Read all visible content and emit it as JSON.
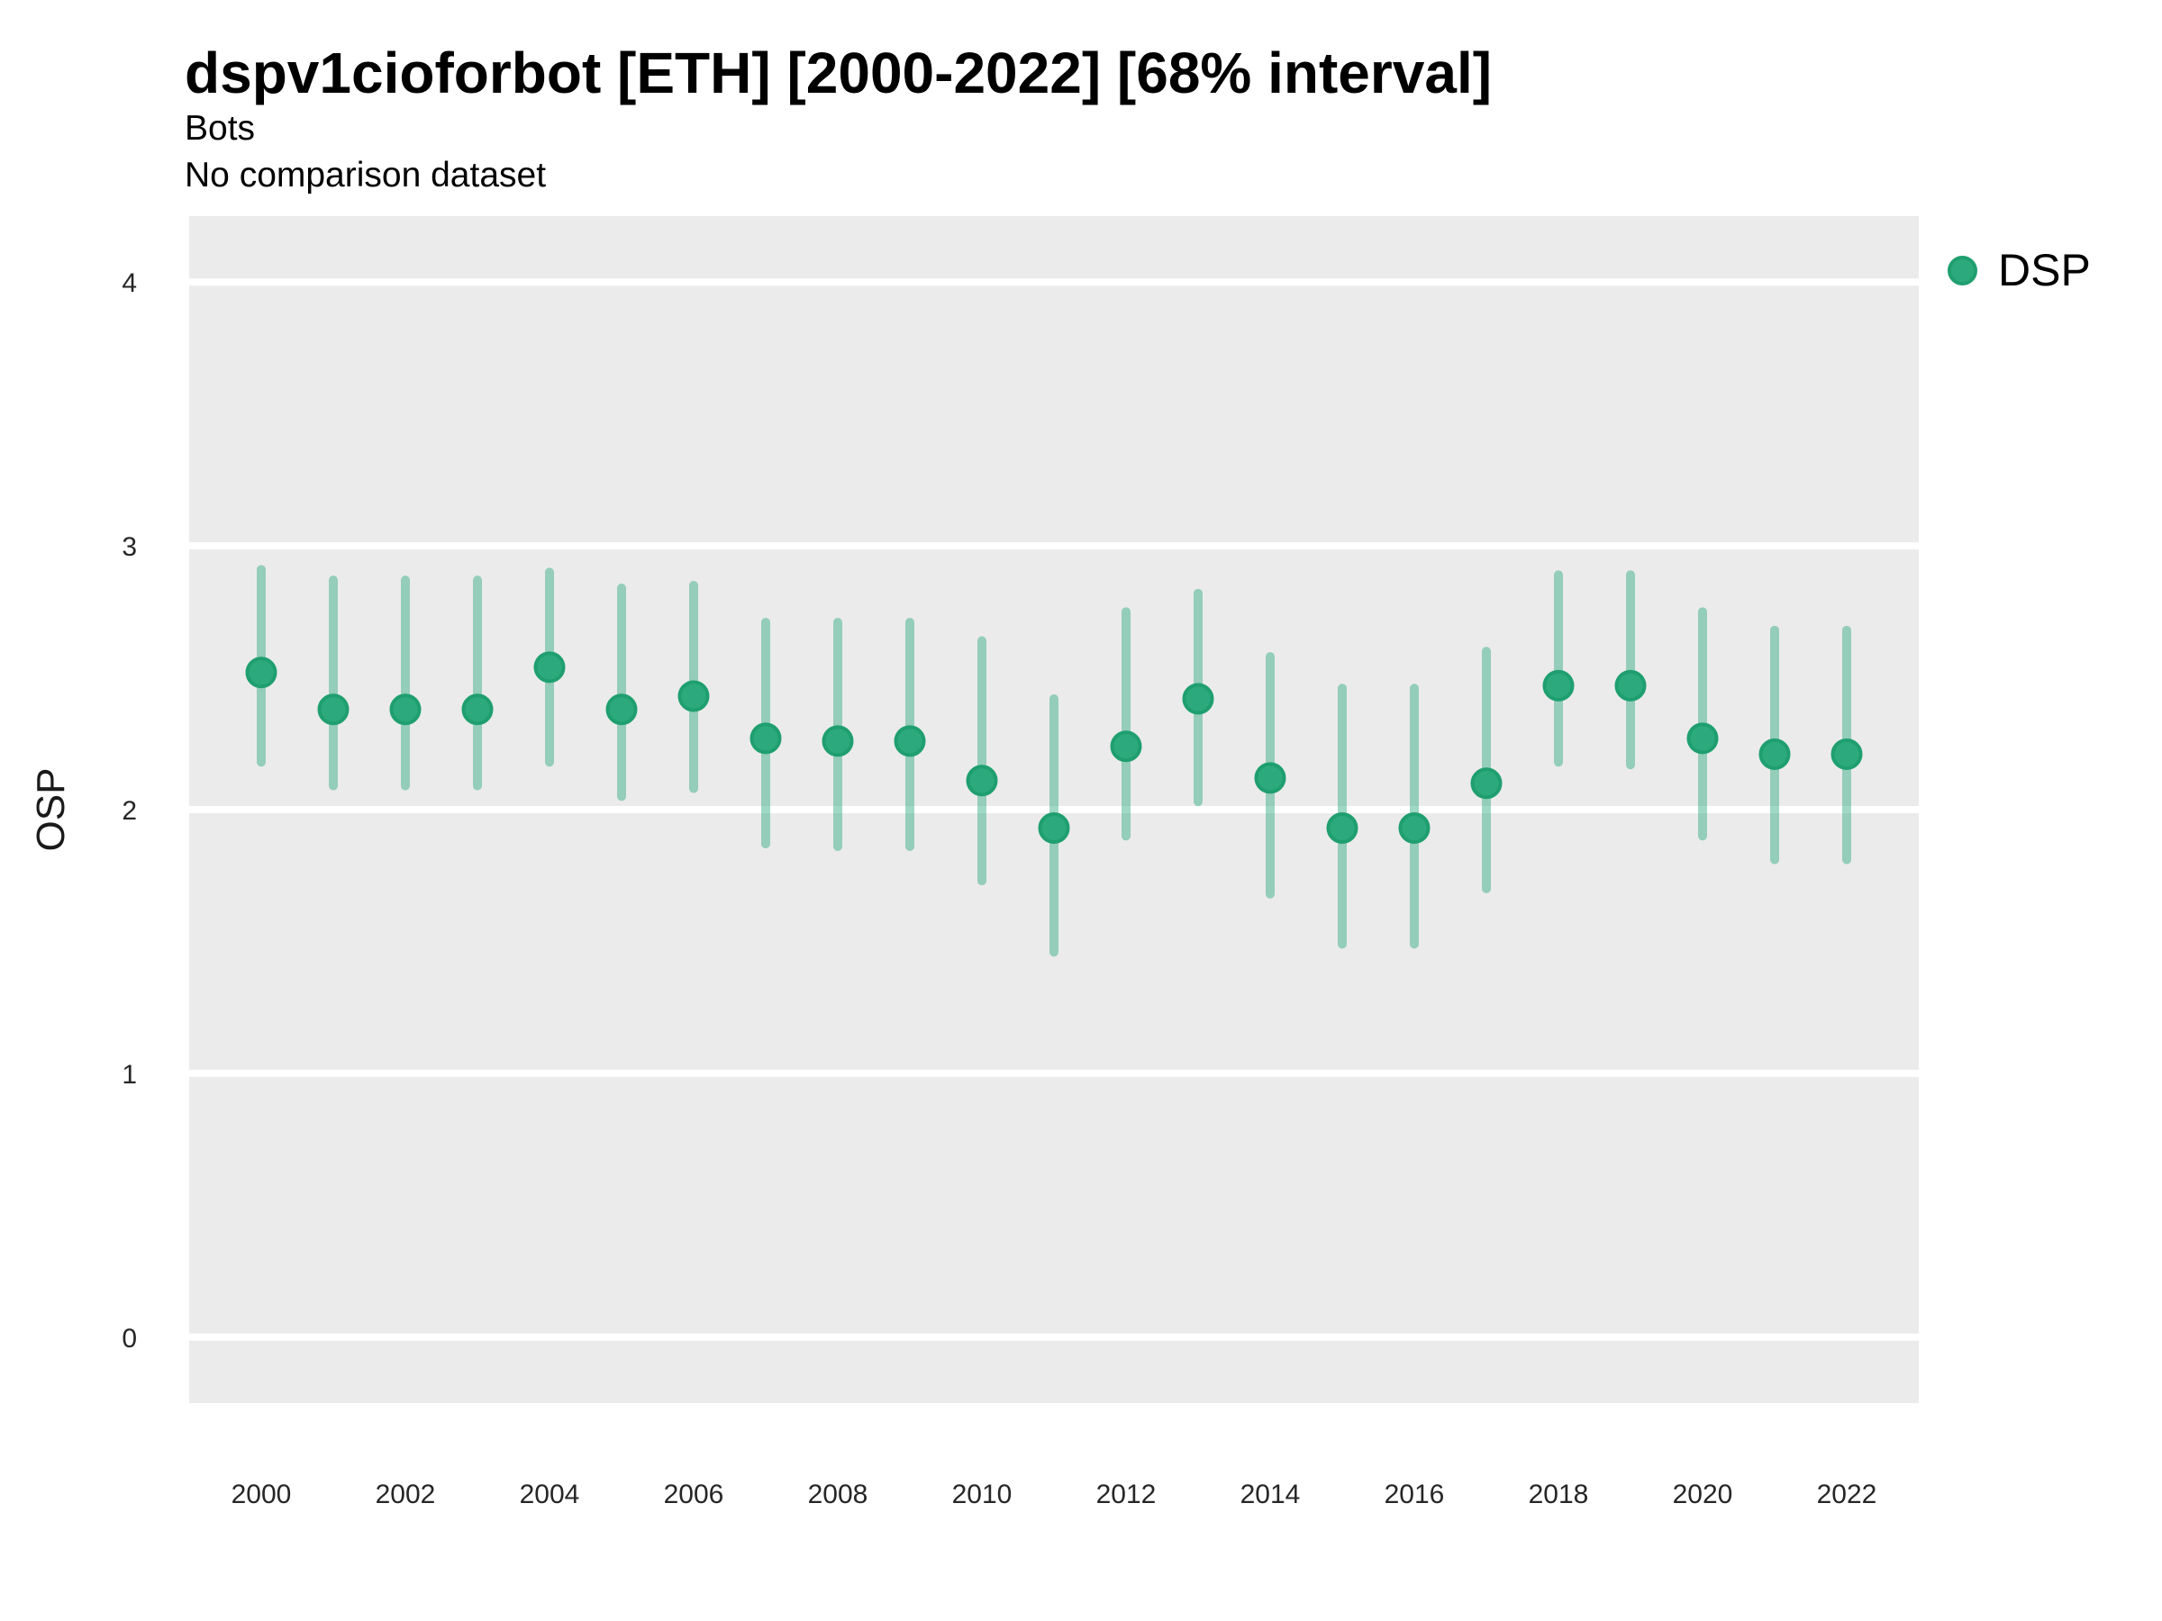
{
  "header": {
    "title": "dspv1cioforbot [ETH] [2000-2022] [68% interval]",
    "subtitle": "Bots",
    "subtitle2": "No comparison dataset"
  },
  "legend": {
    "items": [
      {
        "label": "DSP",
        "swatch_color": "#2DAA7D",
        "swatch_border": "#1F9F70"
      }
    ]
  },
  "colors": {
    "page_bg": "#FFFFFF",
    "panel_bg": "#EBEBEB",
    "gridline": "#FFFFFF",
    "point_fill": "#2DAA7D",
    "point_stroke": "#1F9F70",
    "interval_line": "#2BA97C",
    "interval_opacity": 0.45,
    "title_text": "#000000",
    "tick_text": "#262626",
    "axis_title_text": "#1A1A1A"
  },
  "chart_data": {
    "type": "scatter",
    "subtype": "pointrange",
    "title": "dspv1cioforbot [ETH] [2000-2022] [68% interval]",
    "subtitle": "Bots",
    "annotation": "No comparison dataset",
    "interval_level": "68%",
    "xlabel": "",
    "ylabel": "OSP",
    "xlim": [
      1999,
      2023
    ],
    "ylim": [
      -0.25,
      4.25
    ],
    "yticks": [
      0,
      1,
      2,
      3,
      4
    ],
    "xticks": [
      2000,
      2002,
      2004,
      2006,
      2008,
      2010,
      2012,
      2014,
      2016,
      2018,
      2020,
      2022
    ],
    "grid": "major horizontal white gridlines on gray panel",
    "legend_position": "right",
    "series": [
      {
        "name": "DSP",
        "points": [
          {
            "x": 2000,
            "y": 2.52,
            "lo": 2.18,
            "hi": 2.91
          },
          {
            "x": 2001,
            "y": 2.38,
            "lo": 2.09,
            "hi": 2.87
          },
          {
            "x": 2002,
            "y": 2.38,
            "lo": 2.09,
            "hi": 2.87
          },
          {
            "x": 2003,
            "y": 2.38,
            "lo": 2.09,
            "hi": 2.87
          },
          {
            "x": 2004,
            "y": 2.54,
            "lo": 2.18,
            "hi": 2.9
          },
          {
            "x": 2005,
            "y": 2.38,
            "lo": 2.05,
            "hi": 2.84
          },
          {
            "x": 2006,
            "y": 2.43,
            "lo": 2.08,
            "hi": 2.85
          },
          {
            "x": 2007,
            "y": 2.27,
            "lo": 1.87,
            "hi": 2.71
          },
          {
            "x": 2008,
            "y": 2.26,
            "lo": 1.86,
            "hi": 2.71
          },
          {
            "x": 2009,
            "y": 2.26,
            "lo": 1.86,
            "hi": 2.71
          },
          {
            "x": 2010,
            "y": 2.11,
            "lo": 1.73,
            "hi": 2.64
          },
          {
            "x": 2011,
            "y": 1.93,
            "lo": 1.46,
            "hi": 2.42
          },
          {
            "x": 2012,
            "y": 2.24,
            "lo": 1.9,
            "hi": 2.75
          },
          {
            "x": 2013,
            "y": 2.42,
            "lo": 2.03,
            "hi": 2.82
          },
          {
            "x": 2014,
            "y": 2.12,
            "lo": 1.68,
            "hi": 2.58
          },
          {
            "x": 2015,
            "y": 1.93,
            "lo": 1.49,
            "hi": 2.46
          },
          {
            "x": 2016,
            "y": 1.93,
            "lo": 1.49,
            "hi": 2.46
          },
          {
            "x": 2017,
            "y": 2.1,
            "lo": 1.7,
            "hi": 2.6
          },
          {
            "x": 2018,
            "y": 2.47,
            "lo": 2.18,
            "hi": 2.89
          },
          {
            "x": 2019,
            "y": 2.47,
            "lo": 2.17,
            "hi": 2.89
          },
          {
            "x": 2020,
            "y": 2.27,
            "lo": 1.9,
            "hi": 2.75
          },
          {
            "x": 2021,
            "y": 2.21,
            "lo": 1.81,
            "hi": 2.68
          },
          {
            "x": 2022,
            "y": 2.21,
            "lo": 1.81,
            "hi": 2.68
          }
        ]
      }
    ]
  }
}
